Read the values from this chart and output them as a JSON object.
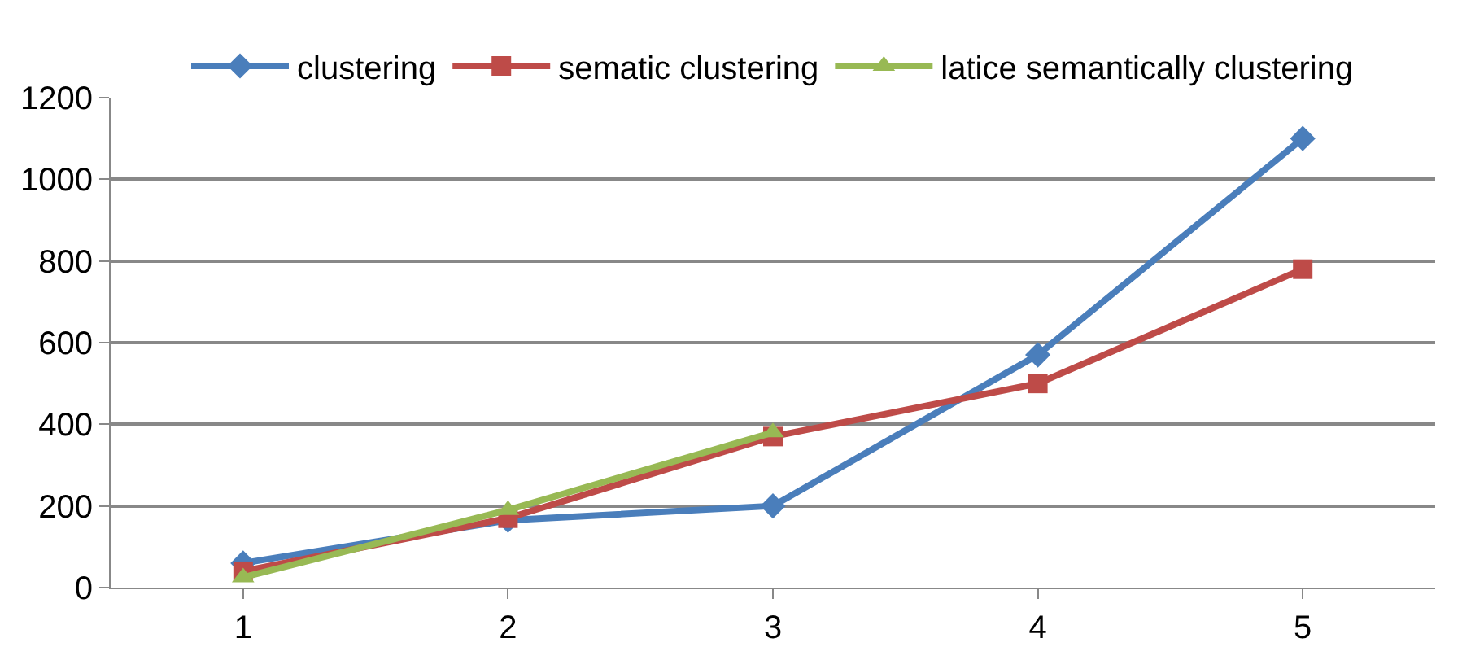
{
  "chart_data": {
    "type": "line",
    "categories": [
      "1",
      "2",
      "3",
      "4",
      "5"
    ],
    "series": [
      {
        "name": "clustering",
        "color": "#4a7ebb",
        "marker": "diamond",
        "values": [
          60,
          165,
          200,
          570,
          1100
        ]
      },
      {
        "name": "sematic clustering",
        "color": "#be4b48",
        "marker": "square",
        "values": [
          40,
          170,
          370,
          500,
          780
        ]
      },
      {
        "name": "latice semantically clustering",
        "color": "#98b954",
        "marker": "triangle",
        "values": [
          25,
          190,
          380,
          null,
          null
        ]
      }
    ],
    "ylim": [
      0,
      1200
    ],
    "yticks": [
      0,
      200,
      400,
      600,
      800,
      1000,
      1200
    ],
    "grid": "y",
    "legend": "top",
    "line_style": "solid"
  }
}
